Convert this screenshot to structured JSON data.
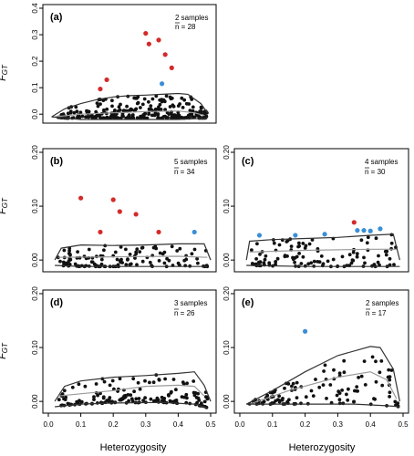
{
  "colors": {
    "outlier_red": "#d42a2a",
    "outlier_blue": "#3a8fd6",
    "point": "#111111",
    "envelope_outer": "#333333",
    "envelope_median": "#9a9a9a"
  },
  "shared": {
    "xlabel": "Heterozygosity",
    "ylabel": "F",
    "ylabel_sub": "GT",
    "xticks": [
      "0.0",
      "0.1",
      "0.2",
      "0.3",
      "0.4",
      "0.5"
    ]
  },
  "chart_data": [
    {
      "panel": "(a)",
      "type": "scatter",
      "samples": "2 samples",
      "n_text": "n = 28",
      "xlim": [
        0,
        0.5
      ],
      "ylim": [
        -0.02,
        0.4
      ],
      "yticks": [
        "0.0",
        "0.1",
        "0.2",
        "0.3",
        "0.4"
      ],
      "ytick_values": [
        0,
        0.1,
        0.2,
        0.3,
        0.4
      ],
      "envelope_upper": [
        [
          0.01,
          -0.01
        ],
        [
          0.05,
          0.02
        ],
        [
          0.1,
          0.04
        ],
        [
          0.15,
          0.055
        ],
        [
          0.2,
          0.065
        ],
        [
          0.25,
          0.07
        ],
        [
          0.3,
          0.072
        ],
        [
          0.35,
          0.075
        ],
        [
          0.4,
          0.078
        ],
        [
          0.43,
          0.075
        ],
        [
          0.47,
          0.04
        ],
        [
          0.49,
          0.005
        ]
      ],
      "envelope_median": [
        [
          0.02,
          -0.01
        ],
        [
          0.1,
          0.0
        ],
        [
          0.2,
          0.005
        ],
        [
          0.3,
          0.01
        ],
        [
          0.4,
          0.012
        ],
        [
          0.45,
          0.005
        ],
        [
          0.48,
          -0.005
        ]
      ],
      "envelope_lower": [
        [
          0.01,
          -0.01
        ],
        [
          0.1,
          -0.02
        ],
        [
          0.2,
          -0.02
        ],
        [
          0.3,
          -0.02
        ],
        [
          0.4,
          -0.02
        ],
        [
          0.49,
          -0.015
        ]
      ],
      "outliers_red": [
        [
          0.16,
          0.095
        ],
        [
          0.18,
          0.13
        ],
        [
          0.3,
          0.305
        ],
        [
          0.31,
          0.265
        ],
        [
          0.34,
          0.28
        ],
        [
          0.36,
          0.225
        ],
        [
          0.38,
          0.175
        ]
      ],
      "outliers_blue": [
        [
          0.35,
          0.115
        ]
      ],
      "cloud": {
        "xmin": 0.03,
        "xmax": 0.49,
        "ymin": -0.015,
        "count": 260,
        "seed": 11
      }
    },
    {
      "panel": "(b)",
      "type": "scatter",
      "samples": "5 samples",
      "n_text": "n = 34",
      "xlim": [
        0,
        0.5
      ],
      "ylim": [
        -0.015,
        0.2
      ],
      "yticks": [
        "0.00",
        "0.10",
        "0.20"
      ],
      "ytick_values": [
        0,
        0.1,
        0.2
      ],
      "envelope_upper": [
        [
          0.02,
          0.0
        ],
        [
          0.04,
          0.022
        ],
        [
          0.1,
          0.028
        ],
        [
          0.2,
          0.027
        ],
        [
          0.3,
          0.028
        ],
        [
          0.4,
          0.03
        ],
        [
          0.48,
          0.03
        ],
        [
          0.5,
          0.0
        ]
      ],
      "envelope_median": [
        [
          0.03,
          0.005
        ],
        [
          0.2,
          0.006
        ],
        [
          0.4,
          0.007
        ],
        [
          0.49,
          0.005
        ]
      ],
      "envelope_lower": [
        [
          0.02,
          -0.01
        ],
        [
          0.1,
          -0.012
        ],
        [
          0.3,
          -0.012
        ],
        [
          0.49,
          -0.012
        ]
      ],
      "outliers_red": [
        [
          0.1,
          0.115
        ],
        [
          0.16,
          0.052
        ],
        [
          0.2,
          0.112
        ],
        [
          0.22,
          0.09
        ],
        [
          0.27,
          0.085
        ],
        [
          0.34,
          0.052
        ]
      ],
      "outliers_blue": [
        [
          0.45,
          0.052
        ]
      ],
      "cloud": {
        "xmin": 0.03,
        "xmax": 0.49,
        "ymin": -0.012,
        "count": 120,
        "seed": 23
      }
    },
    {
      "panel": "(c)",
      "type": "scatter",
      "samples": "4 samples",
      "n_text": "n = 30",
      "xlim": [
        0,
        0.5
      ],
      "ylim": [
        -0.015,
        0.2
      ],
      "yticks": [
        "0.00",
        "0.10",
        "0.20"
      ],
      "ytick_values": [
        0,
        0.1,
        0.2
      ],
      "envelope_upper": [
        [
          0.02,
          0.0
        ],
        [
          0.03,
          0.035
        ],
        [
          0.1,
          0.038
        ],
        [
          0.2,
          0.04
        ],
        [
          0.3,
          0.042
        ],
        [
          0.4,
          0.046
        ],
        [
          0.47,
          0.048
        ],
        [
          0.49,
          0.0
        ]
      ],
      "envelope_median": [
        [
          0.03,
          0.015
        ],
        [
          0.2,
          0.018
        ],
        [
          0.4,
          0.02
        ],
        [
          0.48,
          0.02
        ]
      ],
      "envelope_lower": [
        [
          0.02,
          -0.01
        ],
        [
          0.2,
          -0.012
        ],
        [
          0.49,
          -0.012
        ]
      ],
      "outliers_red": [
        [
          0.35,
          0.07
        ]
      ],
      "outliers_blue": [
        [
          0.06,
          0.046
        ],
        [
          0.17,
          0.046
        ],
        [
          0.26,
          0.048
        ],
        [
          0.36,
          0.055
        ],
        [
          0.38,
          0.055
        ],
        [
          0.4,
          0.054
        ],
        [
          0.43,
          0.058
        ]
      ],
      "cloud": {
        "xmin": 0.03,
        "xmax": 0.49,
        "ymin": -0.012,
        "count": 110,
        "seed": 37
      }
    },
    {
      "panel": "(d)",
      "type": "scatter",
      "samples": "3 samples",
      "n_text": "n = 26",
      "xlim": [
        0,
        0.5
      ],
      "ylim": [
        -0.015,
        0.2
      ],
      "yticks": [
        "0.00",
        "0.10",
        "0.20"
      ],
      "ytick_values": [
        0,
        0.1,
        0.2
      ],
      "envelope_upper": [
        [
          0.02,
          0.0
        ],
        [
          0.05,
          0.028
        ],
        [
          0.1,
          0.038
        ],
        [
          0.2,
          0.045
        ],
        [
          0.3,
          0.048
        ],
        [
          0.4,
          0.052
        ],
        [
          0.45,
          0.055
        ],
        [
          0.48,
          0.03
        ],
        [
          0.5,
          0.0
        ]
      ],
      "envelope_median": [
        [
          0.03,
          0.01
        ],
        [
          0.2,
          0.02
        ],
        [
          0.3,
          0.028
        ],
        [
          0.4,
          0.03
        ],
        [
          0.45,
          0.028
        ],
        [
          0.48,
          0.01
        ]
      ],
      "envelope_lower": [
        [
          0.02,
          -0.01
        ],
        [
          0.1,
          -0.005
        ],
        [
          0.2,
          -0.003
        ],
        [
          0.35,
          -0.002
        ],
        [
          0.45,
          -0.005
        ],
        [
          0.49,
          -0.012
        ]
      ],
      "outliers_red": [],
      "outliers_blue": [],
      "cloud": {
        "xmin": 0.03,
        "xmax": 0.49,
        "ymin": -0.012,
        "count": 150,
        "seed": 51
      }
    },
    {
      "panel": "(e)",
      "type": "scatter",
      "samples": "2 samples",
      "n_text": "n = 17",
      "xlim": [
        0,
        0.5
      ],
      "ylim": [
        -0.015,
        0.2
      ],
      "yticks": [
        "0.00",
        "0.10",
        "0.20"
      ],
      "ytick_values": [
        0,
        0.1,
        0.2
      ],
      "envelope_upper": [
        [
          0.02,
          -0.005
        ],
        [
          0.1,
          0.02
        ],
        [
          0.2,
          0.055
        ],
        [
          0.3,
          0.085
        ],
        [
          0.4,
          0.102
        ],
        [
          0.43,
          0.1
        ],
        [
          0.47,
          0.06
        ],
        [
          0.49,
          0.0
        ]
      ],
      "envelope_median": [
        [
          0.03,
          -0.005
        ],
        [
          0.15,
          0.02
        ],
        [
          0.3,
          0.045
        ],
        [
          0.4,
          0.055
        ],
        [
          0.45,
          0.04
        ],
        [
          0.48,
          0.005
        ]
      ],
      "envelope_lower": [
        [
          0.02,
          -0.005
        ],
        [
          0.2,
          -0.005
        ],
        [
          0.35,
          -0.005
        ],
        [
          0.45,
          -0.008
        ],
        [
          0.49,
          -0.01
        ]
      ],
      "outliers_red": [],
      "outliers_blue": [
        [
          0.2,
          0.13
        ]
      ],
      "cloud": {
        "xmin": 0.03,
        "xmax": 0.49,
        "ymin": -0.012,
        "count": 115,
        "seed": 67,
        "upper_follow": true
      }
    }
  ]
}
